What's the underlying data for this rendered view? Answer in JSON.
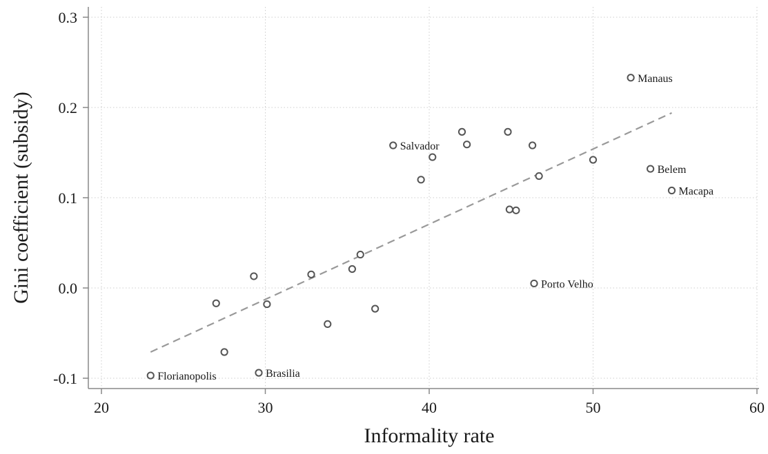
{
  "chart_data": {
    "type": "scatter",
    "title": "",
    "xlabel": "Informality rate",
    "ylabel": "Gini coefficient (subsidy)",
    "xlim": [
      20,
      60
    ],
    "ylim": [
      -0.1,
      0.3
    ],
    "xticks": [
      {
        "value": 20,
        "label": "20"
      },
      {
        "value": 30,
        "label": "30"
      },
      {
        "value": 40,
        "label": "40"
      },
      {
        "value": 50,
        "label": "50"
      },
      {
        "value": 60,
        "label": "60"
      }
    ],
    "yticks": [
      {
        "value": -0.1,
        "label": "-0.1"
      },
      {
        "value": 0.0,
        "label": "0.0"
      },
      {
        "value": 0.1,
        "label": "0.1"
      },
      {
        "value": 0.2,
        "label": "0.2"
      },
      {
        "value": 0.3,
        "label": "0.3"
      }
    ],
    "grid": true,
    "points": [
      {
        "x": 23.0,
        "y": -0.097,
        "label": "Florianopolis"
      },
      {
        "x": 27.0,
        "y": -0.017,
        "label": ""
      },
      {
        "x": 27.5,
        "y": -0.071,
        "label": ""
      },
      {
        "x": 29.3,
        "y": 0.013,
        "label": ""
      },
      {
        "x": 29.6,
        "y": -0.094,
        "label": "Brasilia"
      },
      {
        "x": 30.1,
        "y": -0.018,
        "label": ""
      },
      {
        "x": 32.8,
        "y": 0.015,
        "label": ""
      },
      {
        "x": 33.8,
        "y": -0.04,
        "label": ""
      },
      {
        "x": 35.3,
        "y": 0.021,
        "label": ""
      },
      {
        "x": 35.8,
        "y": 0.037,
        "label": ""
      },
      {
        "x": 36.7,
        "y": -0.023,
        "label": ""
      },
      {
        "x": 37.8,
        "y": 0.158,
        "label": "Salvador"
      },
      {
        "x": 39.5,
        "y": 0.12,
        "label": ""
      },
      {
        "x": 40.2,
        "y": 0.145,
        "label": ""
      },
      {
        "x": 42.0,
        "y": 0.173,
        "label": ""
      },
      {
        "x": 42.3,
        "y": 0.159,
        "label": ""
      },
      {
        "x": 44.8,
        "y": 0.173,
        "label": ""
      },
      {
        "x": 44.9,
        "y": 0.087,
        "label": ""
      },
      {
        "x": 45.3,
        "y": 0.086,
        "label": ""
      },
      {
        "x": 46.3,
        "y": 0.158,
        "label": ""
      },
      {
        "x": 46.4,
        "y": 0.005,
        "label": "Porto Velho"
      },
      {
        "x": 46.7,
        "y": 0.124,
        "label": ""
      },
      {
        "x": 50.0,
        "y": 0.142,
        "label": ""
      },
      {
        "x": 52.3,
        "y": 0.233,
        "label": "Manaus"
      },
      {
        "x": 53.5,
        "y": 0.132,
        "label": "Belem"
      },
      {
        "x": 54.8,
        "y": 0.108,
        "label": "Macapa"
      }
    ],
    "fit_line": {
      "style": "dashed",
      "x": [
        23.0,
        54.8
      ],
      "y": [
        -0.071,
        0.194
      ]
    },
    "colors": {
      "marker": "#555555",
      "fit_line": "#999999",
      "axis": "#888888",
      "grid": "#cccccc"
    }
  }
}
